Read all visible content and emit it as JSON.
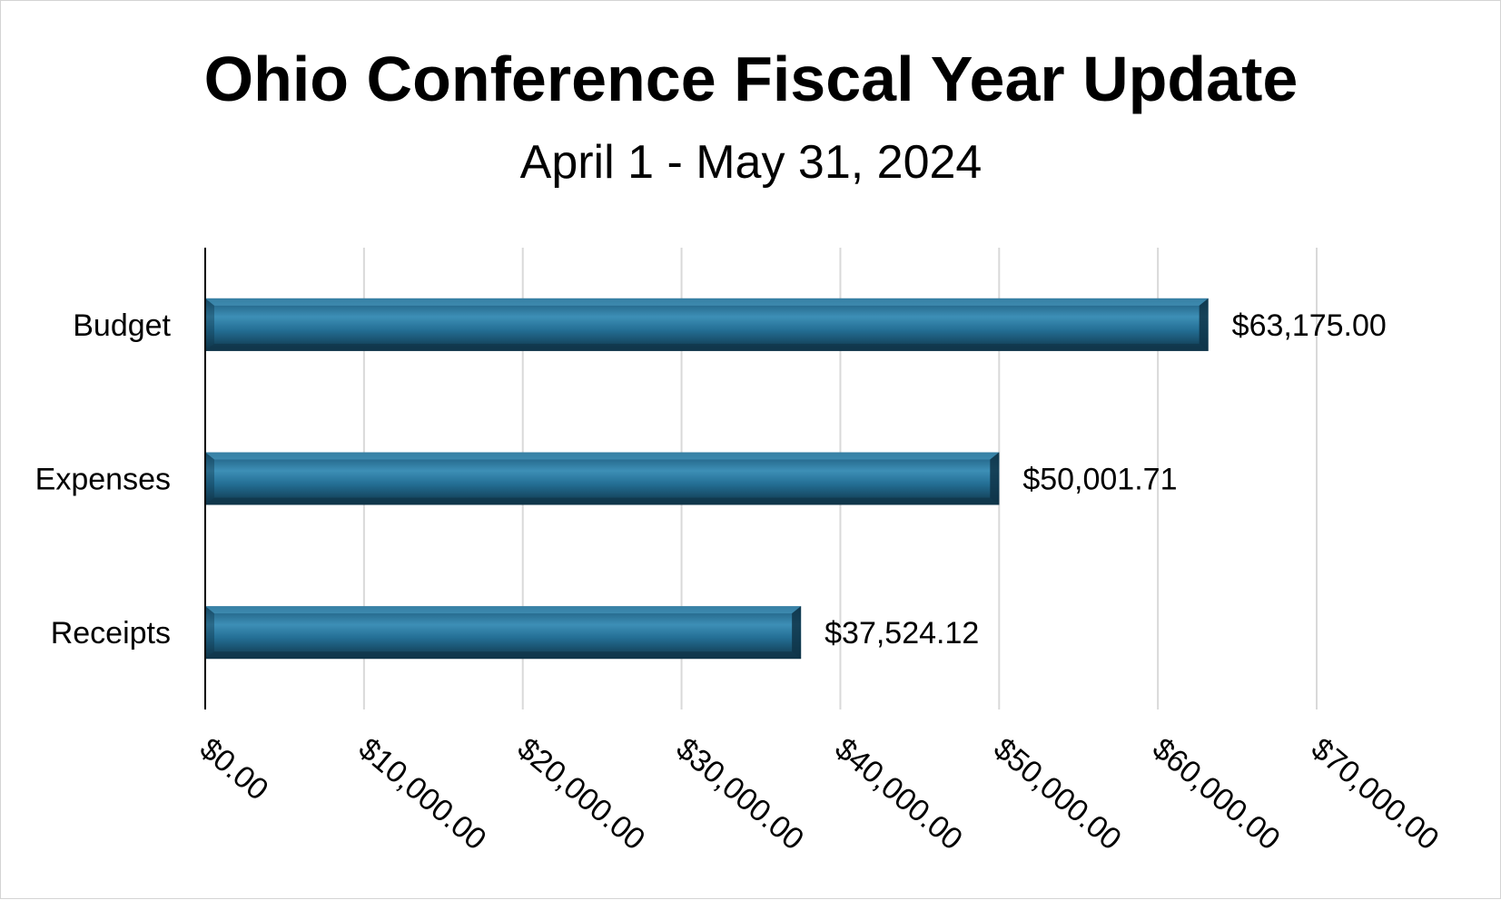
{
  "chart_data": {
    "type": "bar",
    "orientation": "horizontal",
    "title": "Ohio Conference Fiscal Year Update",
    "subtitle": "April 1 - May 31, 2024",
    "categories": [
      "Budget",
      "Expenses",
      "Receipts"
    ],
    "values": [
      63175.0,
      50001.71,
      37524.12
    ],
    "data_labels": [
      "$63,175.00",
      "$50,001.71",
      "$37,524.12"
    ],
    "xlim": [
      0,
      70000
    ],
    "x_ticks": [
      0,
      10000,
      20000,
      30000,
      40000,
      50000,
      60000,
      70000
    ],
    "x_tick_labels": [
      "$0.00",
      "$10,000.00",
      "$20,000.00",
      "$30,000.00",
      "$40,000.00",
      "$50,000.00",
      "$60,000.00",
      "$70,000.00"
    ],
    "grid": true,
    "legend": "none",
    "bar_color": "#246f95",
    "bar_highlight": "#4fa3c9",
    "bar_shadow": "#0f3448"
  }
}
